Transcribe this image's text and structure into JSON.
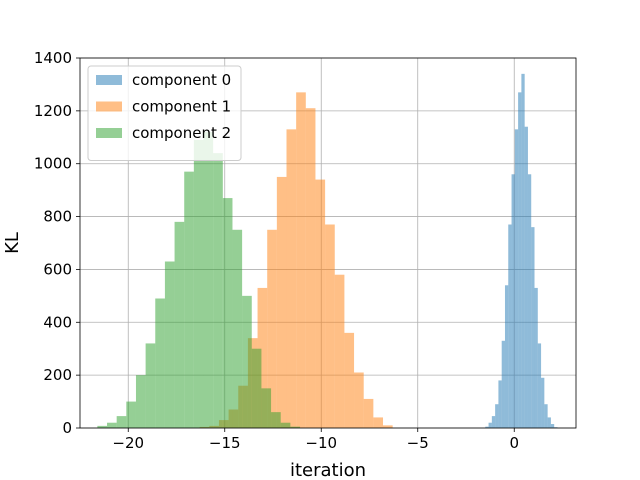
{
  "chart_data": {
    "type": "bar",
    "xlabel": "iteration",
    "ylabel": "KL",
    "xlim": [
      -22.5,
      3.2
    ],
    "ylim": [
      0,
      1400
    ],
    "xticks": [
      -20,
      -15,
      -10,
      -5,
      0
    ],
    "xtick_labels": [
      "−20",
      "−15",
      "−10",
      "−5",
      "0"
    ],
    "yticks": [
      0,
      200,
      400,
      600,
      800,
      1000,
      1200,
      1400
    ],
    "ytick_labels": [
      "0",
      "200",
      "400",
      "600",
      "800",
      "1000",
      "1200",
      "1400"
    ],
    "grid": true,
    "legend_position": "top-left",
    "series": [
      {
        "name": "component 0",
        "color": "#1f77b4",
        "alpha": 0.5,
        "bin_left": [
          -1.5,
          -1.33,
          -1.16,
          -0.99,
          -0.82,
          -0.65,
          -0.48,
          -0.31,
          -0.14,
          0.03,
          0.2,
          0.37,
          0.54,
          0.71,
          0.88,
          1.05,
          1.22,
          1.39,
          1.56,
          1.73,
          1.9,
          2.07
        ],
        "bin_width": 0.17,
        "values": [
          5,
          20,
          45,
          90,
          180,
          330,
          540,
          770,
          960,
          1130,
          1270,
          1340,
          1140,
          960,
          760,
          530,
          320,
          190,
          90,
          40,
          15,
          3
        ]
      },
      {
        "name": "component 1",
        "color": "#ff7f0e",
        "alpha": 0.5,
        "bin_left": [
          -16.3,
          -15.8,
          -15.3,
          -14.8,
          -14.3,
          -13.8,
          -13.3,
          -12.8,
          -12.3,
          -11.8,
          -11.3,
          -10.8,
          -10.3,
          -9.8,
          -9.3,
          -8.8,
          -8.3,
          -7.8,
          -7.3,
          -6.8
        ],
        "bin_width": 0.5,
        "values": [
          4,
          8,
          30,
          70,
          160,
          340,
          530,
          750,
          950,
          1130,
          1270,
          1210,
          940,
          770,
          580,
          360,
          210,
          110,
          40,
          10
        ]
      },
      {
        "name": "component 2",
        "color": "#2ca02c",
        "alpha": 0.5,
        "bin_left": [
          -21.6,
          -21.1,
          -20.6,
          -20.1,
          -19.6,
          -19.1,
          -18.6,
          -18.1,
          -17.6,
          -17.1,
          -16.6,
          -16.1,
          -15.6,
          -15.1,
          -14.6,
          -14.1,
          -13.6,
          -13.1,
          -12.6,
          -12.1,
          -11.6
        ],
        "bin_width": 0.5,
        "values": [
          8,
          20,
          45,
          100,
          200,
          320,
          490,
          630,
          780,
          970,
          1090,
          1120,
          1040,
          870,
          750,
          500,
          300,
          150,
          60,
          20,
          5
        ]
      }
    ]
  }
}
